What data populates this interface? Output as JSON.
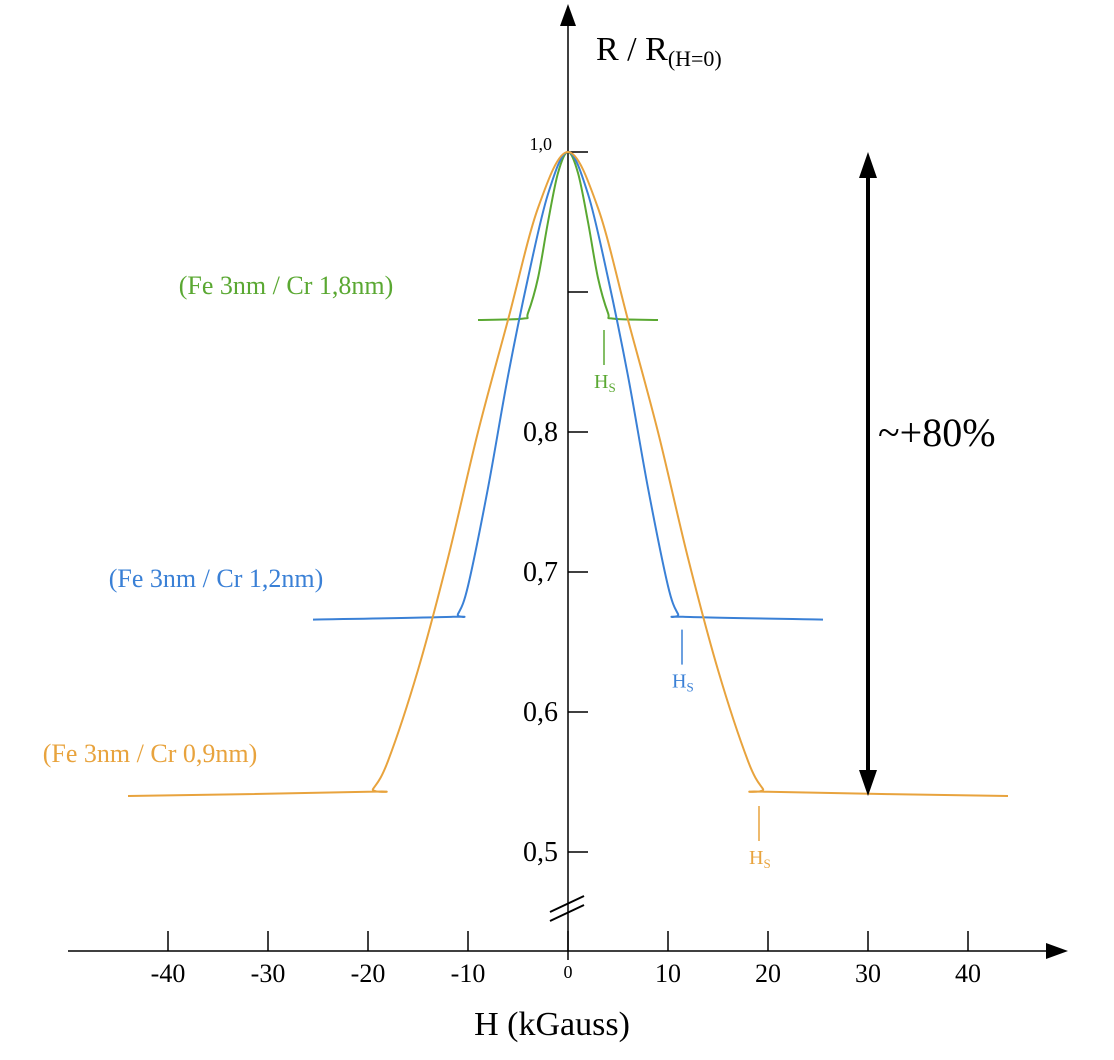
{
  "colors": {
    "axis": "#000000",
    "green": "#5aa832",
    "blue": "#3a80d6",
    "orange": "#e8a33d"
  },
  "chart_data": {
    "type": "line",
    "title": "",
    "ylabel_main": "R / R",
    "ylabel_sub": "(H=0)",
    "xlabel": "H (kGauss)",
    "xlim": [
      -50,
      50
    ],
    "ylim_visible": [
      0.5,
      1.0
    ],
    "y_axis_break": true,
    "x_ticks": [
      -40,
      -30,
      -20,
      -10,
      0,
      10,
      20,
      30,
      40
    ],
    "x_tick_labels": [
      "-40",
      "-30",
      "-20",
      "-10",
      "0",
      "10",
      "20",
      "30",
      "40"
    ],
    "y_ticks": [
      0.5,
      0.6,
      0.7,
      0.8,
      0.9,
      1.0
    ],
    "y_tick_labels": [
      "0,5",
      "0,6",
      "0,7",
      "0,8",
      "",
      "1,0"
    ],
    "grid": false,
    "series": [
      {
        "name": "(Fe 3nm / Cr 1,8nm)",
        "color_key": "green",
        "x": [
          -9,
          -4.5,
          -4,
          -3,
          -2,
          -1,
          0,
          1,
          2,
          3,
          4,
          4.5,
          9
        ],
        "y": [
          0.88,
          0.881,
          0.885,
          0.91,
          0.95,
          0.985,
          1.0,
          0.985,
          0.95,
          0.91,
          0.885,
          0.881,
          0.88
        ],
        "hs_x": 3.5,
        "hs_label": "H",
        "hs_sub": "S"
      },
      {
        "name": "(Fe 3nm / Cr 1,2nm)",
        "color_key": "blue",
        "x": [
          -25.5,
          -11.5,
          -11,
          -10,
          -8,
          -6,
          -4,
          -2,
          0,
          2,
          4,
          6,
          8,
          10,
          11,
          11.5,
          25.5
        ],
        "y": [
          0.666,
          0.668,
          0.67,
          0.69,
          0.76,
          0.84,
          0.91,
          0.97,
          1.0,
          0.97,
          0.91,
          0.84,
          0.76,
          0.69,
          0.67,
          0.668,
          0.666
        ],
        "hs_x": 11.3,
        "hs_label": "H",
        "hs_sub": "S"
      },
      {
        "name": "(Fe 3nm / Cr 0,9nm)",
        "color_key": "orange",
        "x": [
          -44,
          -20,
          -19.5,
          -18,
          -15,
          -12,
          -9,
          -6,
          -3,
          0,
          3,
          6,
          9,
          12,
          15,
          18,
          19.5,
          20,
          44
        ],
        "y": [
          0.54,
          0.543,
          0.545,
          0.565,
          0.63,
          0.71,
          0.8,
          0.88,
          0.96,
          1.0,
          0.96,
          0.88,
          0.8,
          0.71,
          0.63,
          0.565,
          0.545,
          0.543,
          0.54
        ],
        "hs_x": 19,
        "hs_label": "H",
        "hs_sub": "S"
      }
    ],
    "annotation": {
      "text": "~+80%",
      "x": 30,
      "y_from": 0.54,
      "y_to": 1.0
    }
  }
}
